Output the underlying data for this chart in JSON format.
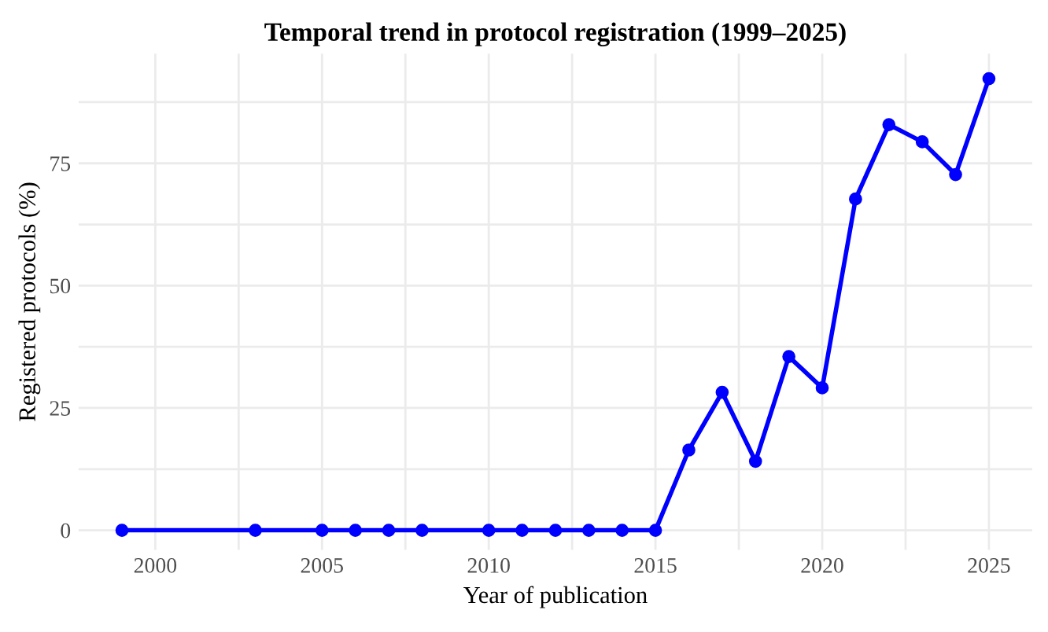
{
  "chart_data": {
    "type": "line",
    "title": "Temporal trend in protocol registration (1999–2025)",
    "xlabel": "Year of publication",
    "ylabel": "Registered protocols (%)",
    "x": [
      1999,
      2003,
      2005,
      2006,
      2007,
      2008,
      2010,
      2011,
      2012,
      2013,
      2014,
      2015,
      2016,
      2017,
      2018,
      2019,
      2020,
      2021,
      2022,
      2023,
      2024,
      2025
    ],
    "series": [
      {
        "color": "#0000ff",
        "values": [
          0,
          0,
          0,
          0,
          0,
          0,
          0,
          0,
          0,
          0,
          0,
          0,
          16.4,
          28.2,
          14.1,
          35.5,
          29.1,
          67.7,
          82.9,
          79.4,
          72.7,
          92.3
        ]
      }
    ],
    "xlim": [
      1997.7,
      2026.3
    ],
    "ylim": [
      -4,
      97.4
    ],
    "xticks": [
      2000,
      {
        "value": 2002.5,
        "label": null
      },
      2005,
      {
        "value": 2007.5,
        "label": null
      },
      2010,
      {
        "value": 2012.5,
        "label": null
      },
      2015,
      {
        "value": 2017.5,
        "label": null
      },
      2020,
      {
        "value": 2022.5,
        "label": null
      },
      2025
    ],
    "yticks": [
      0,
      {
        "value": 12.5,
        "label": null
      },
      25,
      {
        "value": 37.5,
        "label": null
      },
      50,
      {
        "value": 62.5,
        "label": null
      },
      75,
      {
        "value": 87.5,
        "label": null
      }
    ],
    "grid": true,
    "marker": "circle",
    "line_style": "solid",
    "legend": false
  }
}
